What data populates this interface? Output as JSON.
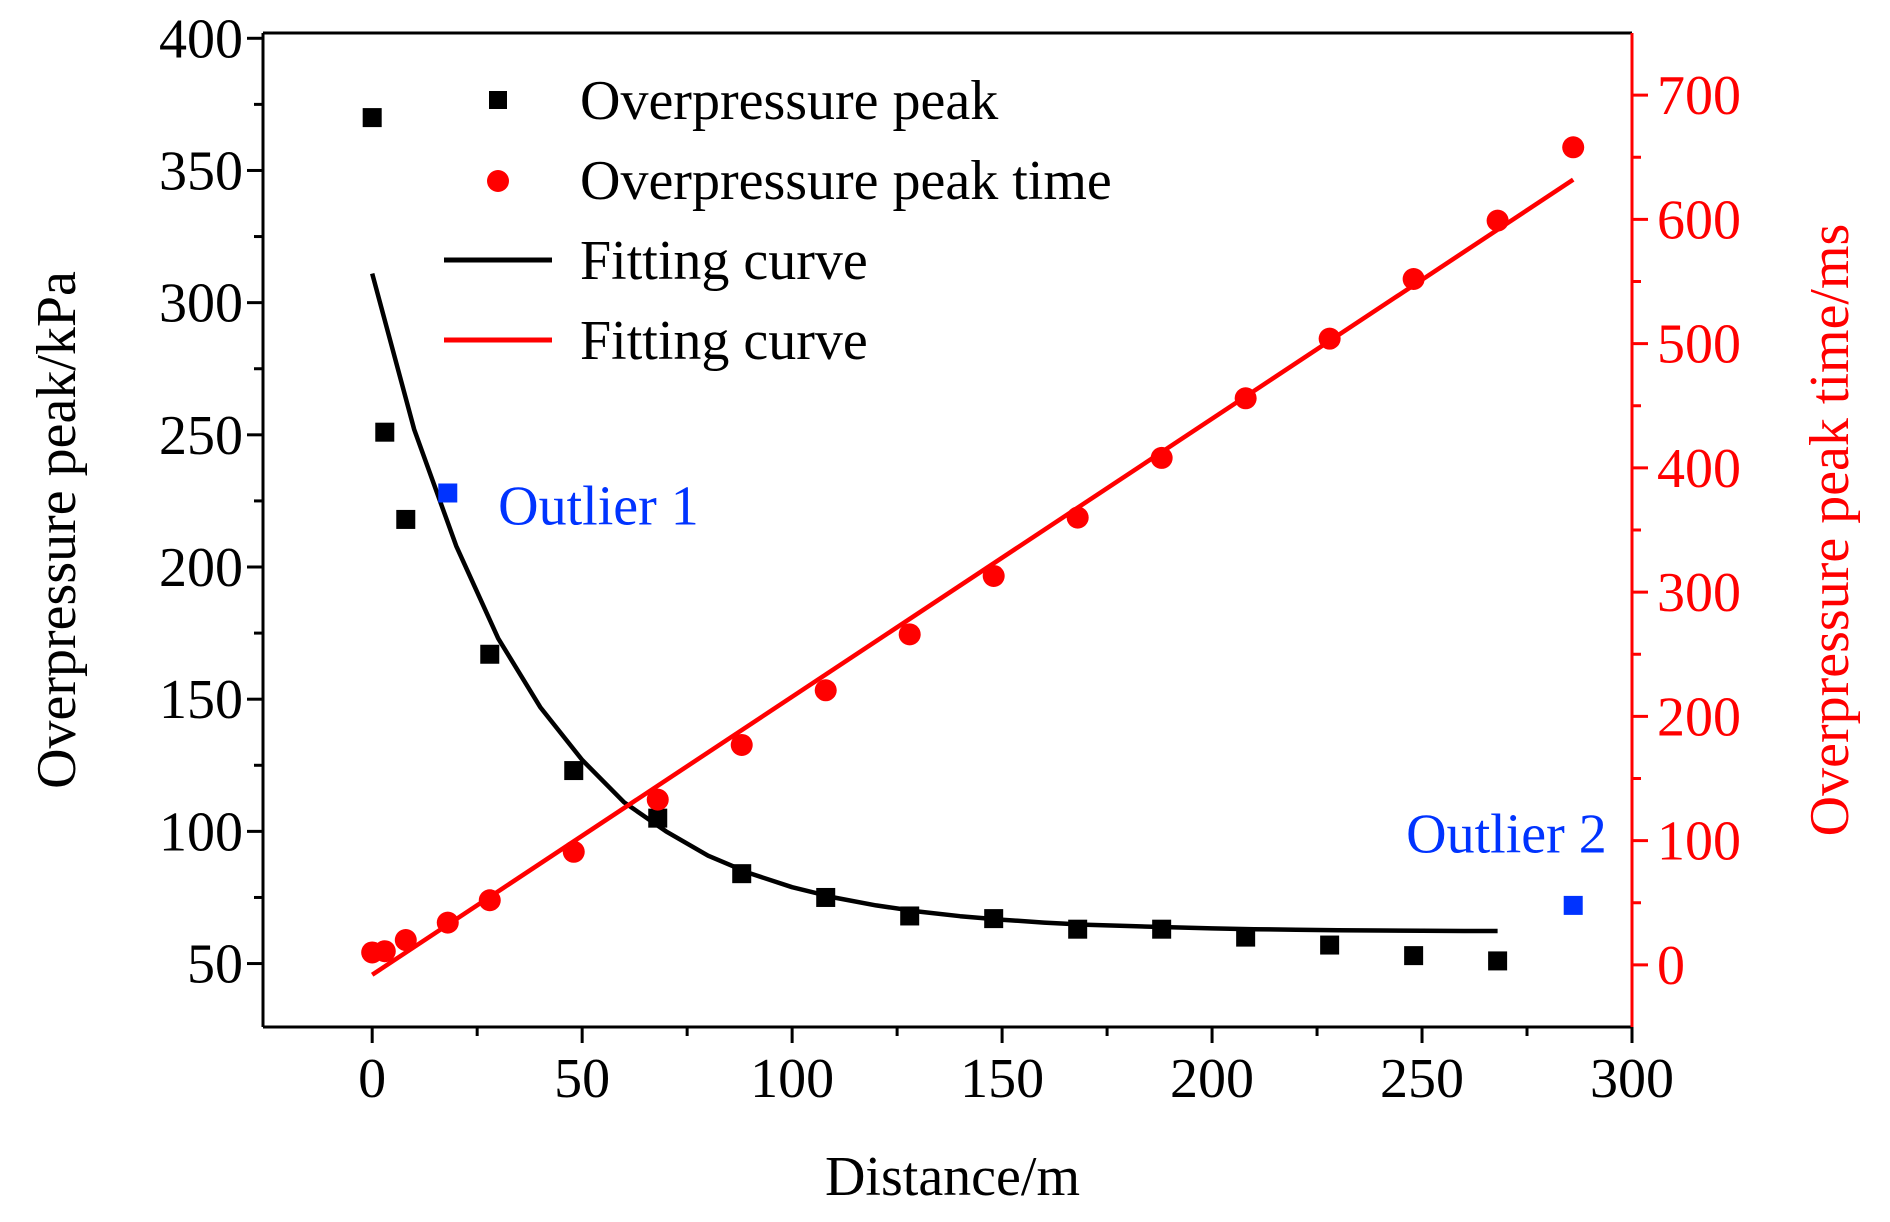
{
  "chart_data": {
    "type": "scatter",
    "x_axis": {
      "label": "Distance/m",
      "range": [
        -26,
        300
      ],
      "ticks": [
        0,
        50,
        100,
        150,
        200,
        250,
        300
      ]
    },
    "y_axis_left": {
      "label": "Overpressure peak/kPa",
      "range": [
        26,
        402
      ],
      "ticks": [
        50,
        100,
        150,
        200,
        250,
        300,
        350,
        400
      ],
      "color": "#000000"
    },
    "y_axis_right": {
      "label": "Overpressure peak time/ms",
      "range": [
        -50,
        750
      ],
      "ticks": [
        0,
        100,
        200,
        300,
        400,
        500,
        600,
        700
      ],
      "color": "#ff0000"
    },
    "legend": {
      "placement": "top-left",
      "entries": [
        {
          "label": "Overpressure peak",
          "marker": "square",
          "color": "#000000"
        },
        {
          "label": "Overpressure peak time",
          "marker": "circle",
          "color": "#ff0000"
        },
        {
          "label": "Fitting curve",
          "marker": "line",
          "color": "#000000"
        },
        {
          "label": "Fitting curve",
          "marker": "line",
          "color": "#ff0000"
        }
      ]
    },
    "series": [
      {
        "name": "Overpressure peak",
        "axis": "left",
        "marker": "square",
        "color": "#000000",
        "x": [
          0,
          3,
          8,
          28,
          48,
          68,
          88,
          108,
          128,
          148,
          168,
          188,
          208,
          228,
          248,
          268
        ],
        "y": [
          370,
          251,
          218,
          167,
          123,
          105,
          84,
          75,
          68,
          67,
          63,
          63,
          60,
          57,
          53,
          51
        ]
      },
      {
        "name": "Overpressure peak time",
        "axis": "right",
        "marker": "circle",
        "color": "#ff0000",
        "x": [
          0,
          3,
          8,
          18,
          28,
          48,
          68,
          88,
          108,
          128,
          148,
          168,
          188,
          208,
          228,
          248,
          268,
          286
        ],
        "y": [
          10,
          11,
          20,
          34,
          52,
          91,
          133,
          177,
          221,
          266,
          313,
          360,
          408,
          456,
          504,
          552,
          599,
          658
        ]
      },
      {
        "name": "Fitting curve",
        "axis": "left",
        "marker": "line",
        "color": "#000000",
        "x": [
          0,
          10,
          20,
          30,
          40,
          50,
          60,
          70,
          80,
          90,
          100,
          110,
          120,
          130,
          140,
          150,
          160,
          170,
          180,
          190,
          200,
          210,
          220,
          230,
          240,
          250,
          260,
          268
        ],
        "y": [
          311,
          252,
          208,
          173,
          147,
          127,
          111,
          100,
          90.8,
          84.1,
          78.9,
          75.0,
          72.0,
          69.7,
          67.9,
          66.6,
          65.5,
          64.7,
          64.2,
          63.7,
          63.3,
          63.0,
          62.8,
          62.6,
          62.5,
          62.4,
          62.3,
          62.3
        ]
      },
      {
        "name": "Fitting curve",
        "axis": "right",
        "marker": "line",
        "color": "#ff0000",
        "x": [
          0,
          286
        ],
        "y": [
          -8,
          632
        ]
      },
      {
        "name": "Outlier 1",
        "axis": "left",
        "marker": "square",
        "color": "#0033ff",
        "x": [
          18
        ],
        "y": [
          228
        ]
      },
      {
        "name": "Outlier 2",
        "axis": "left",
        "marker": "square",
        "color": "#0033ff",
        "x": [
          286
        ],
        "y": [
          72
        ]
      }
    ],
    "annotations": [
      {
        "text": "Outlier 1",
        "x": 30,
        "y": 216,
        "axis": "left",
        "color": "#0033ff",
        "anchor": "start"
      },
      {
        "text": "Outlier 2",
        "x": 294,
        "y": 92,
        "axis": "left",
        "color": "#0033ff",
        "anchor": "end"
      }
    ]
  }
}
